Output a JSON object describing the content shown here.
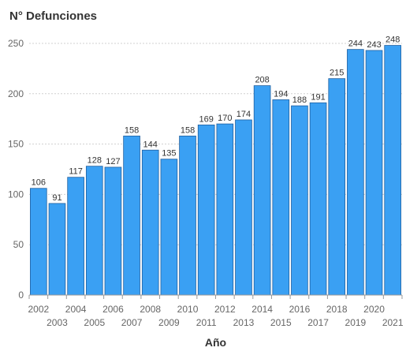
{
  "chart_data": {
    "type": "bar",
    "title": "N° Defunciones",
    "xlabel": "Año",
    "ylabel": "",
    "ylim": [
      0,
      250
    ],
    "yticks": [
      0,
      50,
      100,
      150,
      200,
      250
    ],
    "grid": true,
    "legend": "none",
    "color": "#3aa0f3",
    "categories": [
      "2002",
      "2003",
      "2004",
      "2005",
      "2006",
      "2007",
      "2008",
      "2009",
      "2010",
      "2011",
      "2012",
      "2013",
      "2014",
      "2015",
      "2016",
      "2017",
      "2018",
      "2019",
      "2020",
      "2021"
    ],
    "values": [
      106,
      91,
      117,
      128,
      127,
      158,
      144,
      135,
      158,
      169,
      170,
      174,
      208,
      194,
      188,
      191,
      215,
      244,
      243,
      248
    ]
  }
}
